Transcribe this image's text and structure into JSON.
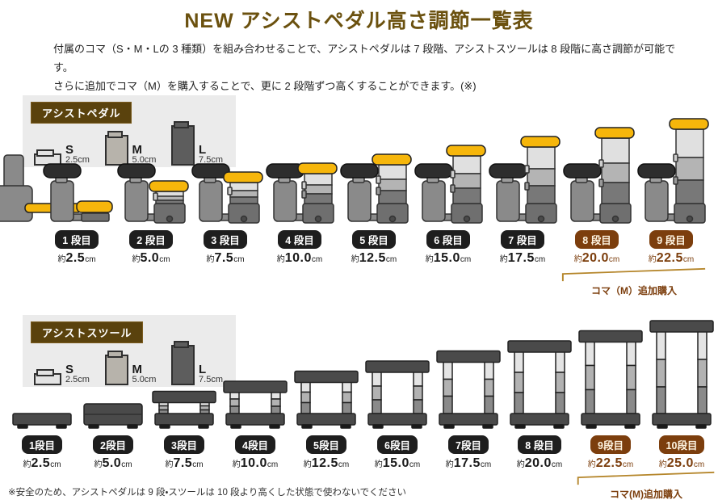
{
  "title": "NEW アシストペダル高さ調節一覧表",
  "intro": {
    "line1": "付属のコマ（S・M・Lの 3 種類）を組み合わせることで、アシストペダルは 7 段階、アシストスツールは 8 段階に高さ調節が可能です。",
    "line2": "さらに追加でコマ（M）を購入することで、更に 2 段階ずつ高くすることができます。(※)"
  },
  "colors": {
    "title_brown": "#6b510f",
    "section_label_bg": "#5a420d",
    "stage_label_black": "#1e1e1e",
    "stage_label_brown": "#7c3e0d",
    "bracket_gold": "#b5862b",
    "pedal_yellow": "#f6b60b",
    "panel_gray": "#ebebeb"
  },
  "sections": [
    {
      "id": "pedal",
      "label": "アシストペダル",
      "legend": [
        {
          "size": "S",
          "height": "2.5cm"
        },
        {
          "size": "M",
          "height": "5.0cm"
        },
        {
          "size": "L",
          "height": "7.5cm"
        }
      ],
      "approx_prefix": "約",
      "unit": "cm",
      "stages": [
        {
          "label": "1 段目",
          "value": "2.5",
          "extra": false
        },
        {
          "label": "2 段目",
          "value": "5.0",
          "extra": false
        },
        {
          "label": "3 段目",
          "value": "7.5",
          "extra": false
        },
        {
          "label": "4 段目",
          "value": "10.0",
          "extra": false
        },
        {
          "label": "5 段目",
          "value": "12.5",
          "extra": false
        },
        {
          "label": "6 段目",
          "value": "15.0",
          "extra": false
        },
        {
          "label": "7 段目",
          "value": "17.5",
          "extra": false
        },
        {
          "label": "8 段目",
          "value": "20.0",
          "extra": true
        },
        {
          "label": "9 段目",
          "value": "22.5",
          "extra": true
        }
      ],
      "extra_note": "コマ（M）追加購入"
    },
    {
      "id": "stool",
      "label": "アシストスツール",
      "legend": [
        {
          "size": "S",
          "height": "2.5cm"
        },
        {
          "size": "M",
          "height": "5.0cm"
        },
        {
          "size": "L",
          "height": "7.5cm"
        }
      ],
      "approx_prefix": "約",
      "unit": "cm",
      "stages": [
        {
          "label": "1段目",
          "value": "2.5",
          "extra": false
        },
        {
          "label": "2段目",
          "value": "5.0",
          "extra": false
        },
        {
          "label": "3段目",
          "value": "7.5",
          "extra": false
        },
        {
          "label": "4段目",
          "value": "10.0",
          "extra": false
        },
        {
          "label": "5段目",
          "value": "12.5",
          "extra": false
        },
        {
          "label": "6段目",
          "value": "15.0",
          "extra": false
        },
        {
          "label": "7段目",
          "value": "17.5",
          "extra": false
        },
        {
          "label": "8 段目",
          "value": "20.0",
          "extra": false
        },
        {
          "label": "9段目",
          "value": "22.5",
          "extra": true
        },
        {
          "label": "10段目",
          "value": "25.0",
          "extra": true
        }
      ],
      "extra_note": "コマ(M)追加購入"
    }
  ],
  "footnote": "※安全のため、アシストペダルは 9 段・スツールは 10 段より高くした状態で使わないでください"
}
